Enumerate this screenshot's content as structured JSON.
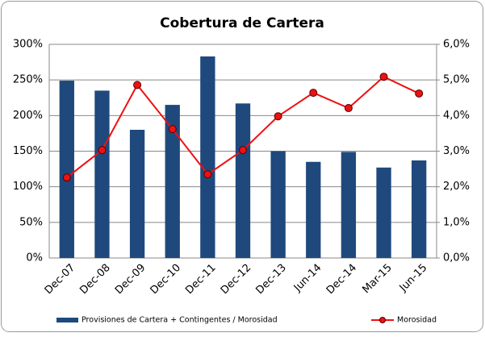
{
  "chart_data": {
    "type": "combo",
    "title": "Cobertura de Cartera",
    "categories": [
      "Dec-07",
      "Dec-08",
      "Dec-09",
      "Dec-10",
      "Dec-11",
      "Dec-12",
      "Dec-13",
      "Jun-14",
      "Dec-14",
      "Mar-15",
      "Jun-15"
    ],
    "series": [
      {
        "name": "Provisiones de Cartera + Contingentes / Morosidad",
        "type": "bar",
        "color": "#1f497d",
        "axis": "y",
        "values": [
          249,
          235,
          180,
          215,
          283,
          217,
          150,
          135,
          149,
          127,
          137
        ]
      },
      {
        "name": "Morosidad",
        "type": "line",
        "color": "#ee1111",
        "axis": "y2",
        "values": [
          2.26,
          3.03,
          4.86,
          3.62,
          2.35,
          3.03,
          3.98,
          4.64,
          4.21,
          5.09,
          4.62
        ]
      }
    ],
    "ylim": [
      0,
      300
    ],
    "yticks": [
      {
        "value": 0,
        "label": "0%"
      },
      {
        "value": 50,
        "label": "50%"
      },
      {
        "value": 100,
        "label": "100%"
      },
      {
        "value": 150,
        "label": "150%"
      },
      {
        "value": 200,
        "label": "200%"
      },
      {
        "value": 250,
        "label": "250%"
      },
      {
        "value": 300,
        "label": "300%"
      }
    ],
    "y2lim": [
      0,
      6
    ],
    "y2ticks": [
      {
        "value": 0,
        "label": "0,0%"
      },
      {
        "value": 1,
        "label": "1,0%"
      },
      {
        "value": 2,
        "label": "2,0%"
      },
      {
        "value": 3,
        "label": "3,0%"
      },
      {
        "value": 4,
        "label": "4,0%"
      },
      {
        "value": 5,
        "label": "5,0%"
      },
      {
        "value": 6,
        "label": "6,0%"
      }
    ],
    "grid": true,
    "legend": "bottom"
  }
}
